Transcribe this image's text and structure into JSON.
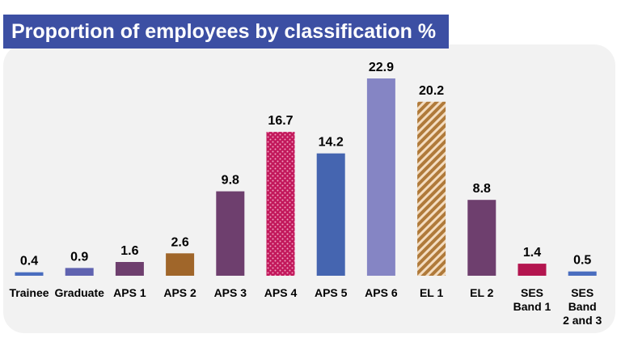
{
  "chart_data": {
    "type": "bar",
    "title": "Proportion of employees by classification %",
    "xlabel": "",
    "ylabel": "",
    "ylim": [
      0,
      25
    ],
    "grid": false,
    "legend": "none",
    "categories": [
      [
        "Trainee"
      ],
      [
        "Graduate"
      ],
      [
        "APS 1"
      ],
      [
        "APS 2"
      ],
      [
        "APS 3"
      ],
      [
        "APS 4"
      ],
      [
        "APS 5"
      ],
      [
        "APS 6"
      ],
      [
        "EL 1"
      ],
      [
        "EL 2"
      ],
      [
        "SES",
        "Band 1"
      ],
      [
        "SES",
        "Band",
        "2 and 3"
      ]
    ],
    "values": [
      0.4,
      0.9,
      1.6,
      2.6,
      9.8,
      16.7,
      14.2,
      22.9,
      20.2,
      8.8,
      1.4,
      0.5
    ],
    "value_labels": [
      "0.4",
      "0.9",
      "1.6",
      "2.6",
      "9.8",
      "16.7",
      "14.2",
      "22.9",
      "20.2",
      "8.8",
      "1.4",
      "0.5"
    ],
    "bar_styles": [
      {
        "color": "#4a6dbf",
        "pattern": "solid"
      },
      {
        "color": "#6063b0",
        "pattern": "solid"
      },
      {
        "color": "#6e3f6e",
        "pattern": "solid"
      },
      {
        "color": "#a0662a",
        "pattern": "solid"
      },
      {
        "color": "#6e3f6e",
        "pattern": "solid"
      },
      {
        "color": "#c2185b",
        "pattern": "dots"
      },
      {
        "color": "#4565b0",
        "pattern": "solid"
      },
      {
        "color": "#8585c4",
        "pattern": "solid"
      },
      {
        "color": "#b07a3a",
        "pattern": "diagonal"
      },
      {
        "color": "#6e3f6e",
        "pattern": "solid"
      },
      {
        "color": "#b3154f",
        "pattern": "solid"
      },
      {
        "color": "#4a6dbf",
        "pattern": "solid"
      }
    ],
    "title_bg": "#3c4fa3",
    "panel_bg": "#f2f2f2"
  }
}
